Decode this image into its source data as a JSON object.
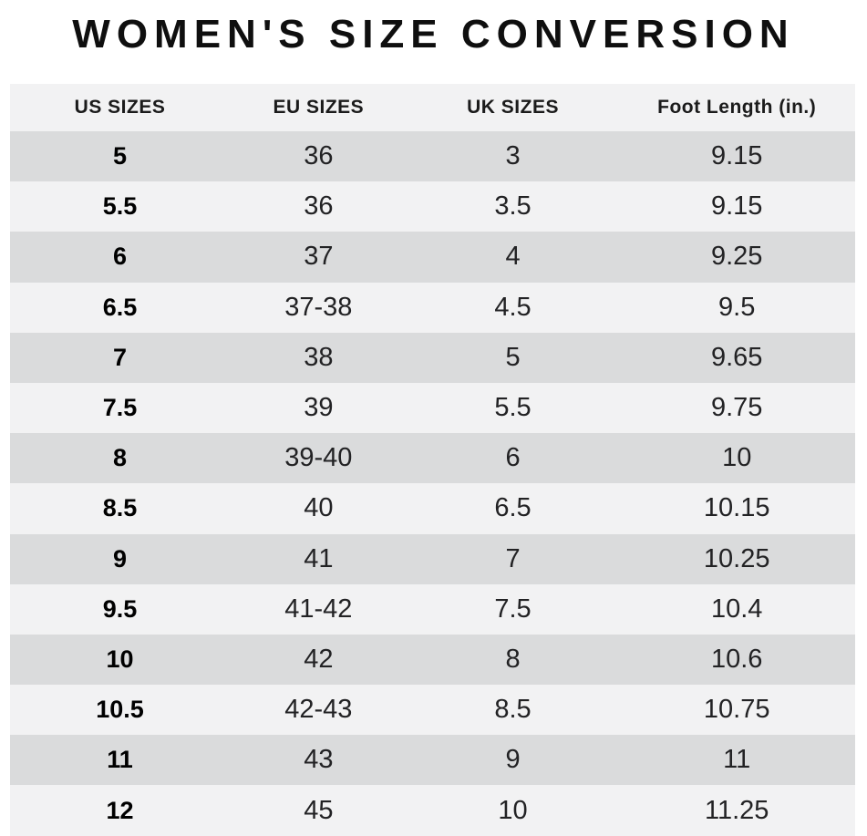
{
  "chart_data": {
    "type": "table",
    "title": "WOMEN'S SIZE CONVERSION",
    "columns": [
      "US SIZES",
      "EU SIZES",
      "UK SIZES",
      "Foot Length (in.)"
    ],
    "rows": [
      [
        "5",
        "36",
        "3",
        "9.15"
      ],
      [
        "5.5",
        "36",
        "3.5",
        "9.15"
      ],
      [
        "6",
        "37",
        "4",
        "9.25"
      ],
      [
        "6.5",
        "37-38",
        "4.5",
        "9.5"
      ],
      [
        "7",
        "38",
        "5",
        "9.65"
      ],
      [
        "7.5",
        "39",
        "5.5",
        "9.75"
      ],
      [
        "8",
        "39-40",
        "6",
        "10"
      ],
      [
        "8.5",
        "40",
        "6.5",
        "10.15"
      ],
      [
        "9",
        "41",
        "7",
        "10.25"
      ],
      [
        "9.5",
        "41-42",
        "7.5",
        "10.4"
      ],
      [
        "10",
        "42",
        "8",
        "10.6"
      ],
      [
        "10.5",
        "42-43",
        "8.5",
        "10.75"
      ],
      [
        "11",
        "43",
        "9",
        "11"
      ],
      [
        "12",
        "45",
        "10",
        "11.25"
      ]
    ],
    "layout": {
      "first_data_row_shade": "gray",
      "alternating_rows": true,
      "grid": false,
      "legend": "none"
    }
  },
  "colors": {
    "row_gray": "#dadbdc",
    "row_light": "#f2f2f3",
    "header_bg": "#f2f2f3",
    "title_text": "#0f0f0f",
    "cell_text": "#222224",
    "us_size_text": "#000000",
    "page_background": "#ffffff"
  }
}
